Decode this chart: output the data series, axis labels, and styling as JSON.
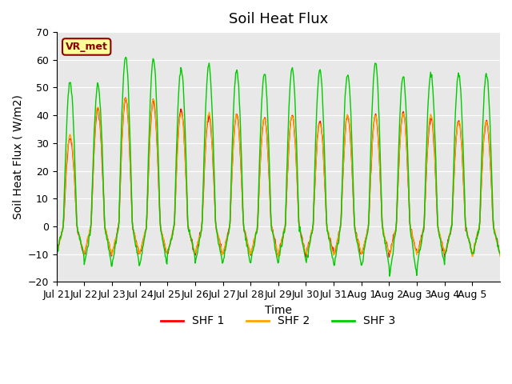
{
  "title": "Soil Heat Flux",
  "ylabel": "Soil Heat Flux ( W/m2)",
  "xlabel": "Time",
  "ylim": [
    -20,
    70
  ],
  "yticks": [
    -20,
    -10,
    0,
    10,
    20,
    30,
    40,
    50,
    60,
    70
  ],
  "xtick_labels": [
    "Jul 21",
    "Jul 22",
    "Jul 23",
    "Jul 24",
    "Jul 25",
    "Jul 26",
    "Jul 27",
    "Jul 28",
    "Jul 29",
    "Jul 30",
    "Jul 31",
    "Aug 1",
    "Aug 2",
    "Aug 3",
    "Aug 4",
    "Aug 5"
  ],
  "shf1_color": "#FF0000",
  "shf2_color": "#FFA500",
  "shf3_color": "#00CC00",
  "legend_label1": "SHF 1",
  "legend_label2": "SHF 2",
  "legend_label3": "SHF 3",
  "annotation_text": "VR_met",
  "bg_color": "#E8E8E8",
  "line_width": 1.0,
  "title_fontsize": 13,
  "label_fontsize": 10,
  "tick_fontsize": 9
}
